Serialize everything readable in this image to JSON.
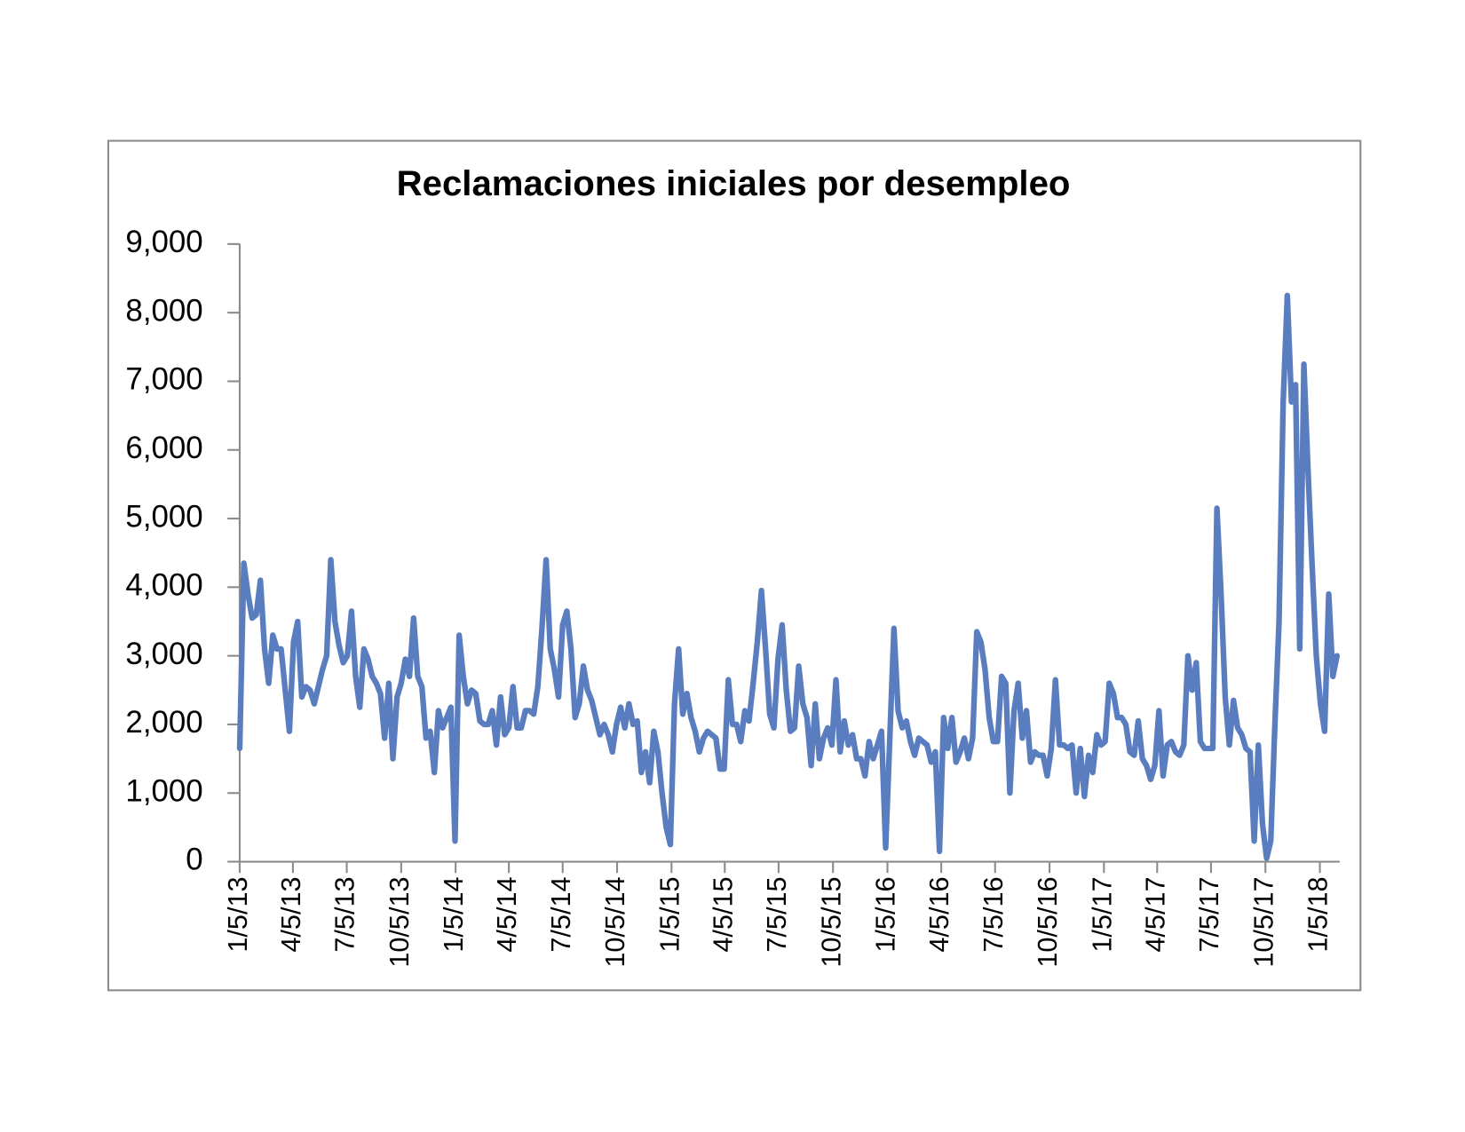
{
  "chart_data": {
    "type": "line",
    "title": "Reclamaciones iniciales por desempleo",
    "color": "#5a7dbf",
    "x": [
      "1/5/13",
      "1/12/13",
      "1/19/13",
      "1/26/13",
      "2/2/13",
      "2/9/13",
      "2/16/13",
      "2/23/13",
      "3/2/13",
      "3/9/13",
      "3/16/13",
      "3/23/13",
      "3/30/13",
      "4/6/13",
      "4/13/13",
      "4/20/13",
      "4/27/13",
      "5/4/13",
      "5/11/13",
      "5/18/13",
      "5/25/13",
      "6/1/13",
      "6/8/13",
      "6/15/13",
      "6/22/13",
      "6/29/13",
      "7/6/13",
      "7/13/13",
      "7/20/13",
      "7/27/13",
      "8/3/13",
      "8/10/13",
      "8/17/13",
      "8/24/13",
      "8/31/13",
      "9/7/13",
      "9/14/13",
      "9/21/13",
      "9/28/13",
      "10/5/13",
      "10/12/13",
      "10/19/13",
      "10/26/13",
      "11/2/13",
      "11/9/13",
      "11/16/13",
      "11/23/13",
      "11/30/13",
      "12/7/13",
      "12/14/13",
      "12/21/13",
      "12/28/13",
      "1/4/14",
      "1/11/14",
      "1/18/14",
      "1/25/14",
      "2/1/14",
      "2/8/14",
      "2/15/14",
      "2/22/14",
      "3/1/14",
      "3/8/14",
      "3/15/14",
      "3/22/14",
      "3/29/14",
      "4/5/14",
      "4/12/14",
      "4/19/14",
      "4/26/14",
      "5/3/14",
      "5/10/14",
      "5/17/14",
      "5/24/14",
      "5/31/14",
      "6/7/14",
      "6/14/14",
      "6/21/14",
      "6/28/14",
      "7/5/14",
      "7/12/14",
      "7/19/14",
      "7/26/14",
      "8/2/14",
      "8/9/14",
      "8/16/14",
      "8/23/14",
      "8/30/14",
      "9/6/14",
      "9/13/14",
      "9/20/14",
      "9/27/14",
      "10/4/14",
      "10/11/14",
      "10/18/14",
      "10/25/14",
      "11/1/14",
      "11/8/14",
      "11/15/14",
      "11/22/14",
      "11/29/14",
      "12/6/14",
      "12/13/14",
      "12/20/14",
      "12/27/14",
      "1/3/15",
      "1/10/15",
      "1/17/15",
      "1/24/15",
      "1/31/15",
      "2/7/15",
      "2/14/15",
      "2/21/15",
      "2/28/15",
      "3/7/15",
      "3/14/15",
      "3/21/15",
      "3/28/15",
      "4/4/15",
      "4/11/15",
      "4/18/15",
      "4/25/15",
      "5/2/15",
      "5/9/15",
      "5/16/15",
      "5/23/15",
      "5/30/15",
      "6/6/15",
      "6/13/15",
      "6/20/15",
      "6/27/15",
      "7/4/15",
      "7/11/15",
      "7/18/15",
      "7/25/15",
      "8/1/15",
      "8/8/15",
      "8/15/15",
      "8/22/15",
      "8/29/15",
      "9/5/15",
      "9/12/15",
      "9/19/15",
      "9/26/15",
      "10/3/15",
      "10/10/15",
      "10/17/15",
      "10/24/15",
      "10/31/15",
      "11/7/15",
      "11/14/15",
      "11/21/15",
      "11/28/15",
      "12/5/15",
      "12/12/15",
      "12/19/15",
      "12/26/15",
      "1/2/16",
      "1/9/16",
      "1/16/16",
      "1/23/16",
      "1/30/16",
      "2/6/16",
      "2/13/16",
      "2/20/16",
      "2/27/16",
      "3/5/16",
      "3/12/16",
      "3/19/16",
      "3/26/16",
      "4/2/16",
      "4/9/16",
      "4/16/16",
      "4/23/16",
      "4/30/16",
      "5/7/16",
      "5/14/16",
      "5/21/16",
      "5/28/16",
      "6/4/16",
      "6/11/16",
      "6/18/16",
      "6/25/16",
      "7/2/16",
      "7/9/16",
      "7/16/16",
      "7/23/16",
      "7/30/16",
      "8/6/16",
      "8/13/16",
      "8/20/16",
      "8/27/16",
      "9/3/16",
      "9/10/16",
      "9/17/16",
      "9/24/16",
      "10/1/16",
      "10/8/16",
      "10/15/16",
      "10/22/16",
      "10/29/16",
      "11/5/16",
      "11/12/16",
      "11/19/16",
      "11/26/16",
      "12/3/16",
      "12/10/16",
      "12/17/16",
      "12/24/16",
      "12/31/16",
      "1/7/17",
      "1/14/17",
      "1/21/17",
      "1/28/17",
      "2/4/17",
      "2/11/17",
      "2/18/17",
      "2/25/17",
      "3/4/17",
      "3/11/17",
      "3/18/17",
      "3/25/17",
      "4/1/17",
      "4/8/17",
      "4/15/17",
      "4/22/17",
      "4/29/17",
      "5/6/17",
      "5/13/17",
      "5/20/17",
      "5/27/17",
      "6/3/17",
      "6/10/17",
      "6/17/17",
      "6/24/17",
      "7/1/17",
      "7/8/17",
      "7/15/17",
      "7/22/17",
      "7/29/17",
      "8/5/17",
      "8/12/17",
      "8/19/17",
      "8/26/17",
      "9/2/17",
      "9/9/17",
      "9/16/17",
      "9/23/17",
      "9/30/17",
      "10/7/17",
      "10/14/17",
      "10/21/17",
      "10/28/17",
      "11/4/17",
      "11/11/17",
      "11/18/17",
      "11/25/17",
      "12/2/17",
      "12/9/17",
      "12/16/17",
      "12/23/17",
      "12/30/17",
      "1/6/18",
      "1/13/18",
      "1/20/18",
      "1/27/18",
      "2/3/18"
    ],
    "values": [
      1650,
      4350,
      3900,
      3550,
      3600,
      4100,
      3100,
      2600,
      3300,
      3100,
      3100,
      2500,
      1900,
      3200,
      3500,
      2400,
      2550,
      2500,
      2300,
      2550,
      2800,
      3000,
      4400,
      3500,
      3150,
      2900,
      3000,
      3650,
      2700,
      2250,
      3100,
      2950,
      2700,
      2600,
      2450,
      1800,
      2600,
      1500,
      2400,
      2600,
      2950,
      2700,
      3550,
      2700,
      2550,
      1800,
      1900,
      1300,
      2200,
      1950,
      2100,
      2250,
      300,
      3300,
      2700,
      2300,
      2500,
      2450,
      2050,
      2000,
      2000,
      2200,
      1700,
      2400,
      1850,
      1950,
      2550,
      1950,
      1950,
      2200,
      2200,
      2150,
      2550,
      3400,
      4400,
      3100,
      2800,
      2400,
      3450,
      3650,
      3100,
      2100,
      2300,
      2850,
      2500,
      2350,
      2100,
      1850,
      2000,
      1850,
      1600,
      2000,
      2250,
      1950,
      2300,
      2000,
      2050,
      1300,
      1600,
      1150,
      1900,
      1600,
      1000,
      500,
      250,
      2300,
      3100,
      2150,
      2450,
      2100,
      1900,
      1600,
      1800,
      1900,
      1850,
      1800,
      1350,
      1350,
      2650,
      2000,
      2000,
      1750,
      2200,
      2050,
      2600,
      3200,
      3950,
      3100,
      2150,
      1950,
      2950,
      3450,
      2500,
      1900,
      1950,
      2850,
      2300,
      2100,
      1400,
      2300,
      1500,
      1800,
      1950,
      1700,
      2650,
      1600,
      2050,
      1700,
      1850,
      1500,
      1500,
      1250,
      1750,
      1500,
      1700,
      1900,
      200,
      1800,
      3400,
      2200,
      1950,
      2050,
      1750,
      1550,
      1800,
      1750,
      1700,
      1450,
      1600,
      150,
      2100,
      1650,
      2100,
      1450,
      1600,
      1800,
      1500,
      1800,
      3350,
      3200,
      2800,
      2100,
      1750,
      1750,
      2700,
      2600,
      1000,
      2200,
      2600,
      1800,
      2200,
      1450,
      1600,
      1550,
      1550,
      1250,
      1650,
      2650,
      1700,
      1700,
      1650,
      1700,
      1000,
      1650,
      950,
      1550,
      1300,
      1850,
      1700,
      1750,
      2600,
      2450,
      2100,
      2100,
      2000,
      1600,
      1550,
      2050,
      1500,
      1400,
      1200,
      1400,
      2200,
      1250,
      1700,
      1750,
      1600,
      1550,
      1700,
      3000,
      2500,
      2900,
      1750,
      1650,
      1650,
      1650,
      5150,
      3900,
      2400,
      1700,
      2350,
      1950,
      1850,
      1650,
      1600,
      300,
      1700,
      550,
      50,
      300,
      2000,
      3500,
      6700,
      8250,
      6700,
      6950,
      3100,
      7250,
      5700,
      4300,
      3000,
      2300,
      1900,
      3900,
      2700,
      3000
    ],
    "xlim": [
      "1/5/13",
      "2/3/18"
    ],
    "xticks": [
      "1/5/13",
      "4/5/13",
      "7/5/13",
      "10/5/13",
      "1/5/14",
      "4/5/14",
      "7/5/14",
      "10/5/14",
      "1/5/15",
      "4/5/15",
      "7/5/15",
      "10/5/15",
      "1/5/16",
      "4/5/16",
      "7/5/16",
      "10/5/16",
      "1/5/17",
      "4/5/17",
      "7/5/17",
      "10/5/17",
      "1/5/18"
    ],
    "ylim": [
      0,
      9000
    ],
    "yticks": [
      0,
      {
        "value": 1000,
        "label": "1,000"
      },
      {
        "value": 2000,
        "label": "2,000"
      },
      {
        "value": 3000,
        "label": "3,000"
      },
      {
        "value": 4000,
        "label": "4,000"
      },
      {
        "value": 5000,
        "label": "5,000"
      },
      {
        "value": 6000,
        "label": "6,000"
      },
      {
        "value": 7000,
        "label": "7,000"
      },
      {
        "value": 8000,
        "label": "8,000"
      },
      {
        "value": 9000,
        "label": "9,000"
      }
    ],
    "grid": false
  }
}
